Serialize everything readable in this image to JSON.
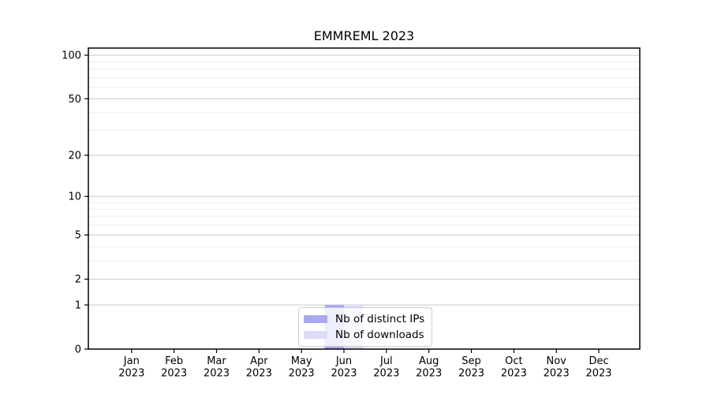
{
  "chart_data": {
    "type": "bar",
    "title": "EMMREML 2023",
    "categories": [
      "Jan",
      "Feb",
      "Mar",
      "Apr",
      "May",
      "Jun",
      "Jul",
      "Aug",
      "Sep",
      "Oct",
      "Nov",
      "Dec"
    ],
    "year_label": "2023",
    "series": [
      {
        "name": "Nb of distinct IPs",
        "color": "#a9a9ef",
        "values": [
          0,
          0,
          0,
          0,
          0,
          1,
          0,
          0,
          0,
          0,
          0,
          0
        ]
      },
      {
        "name": "Nb of downloads",
        "color": "#dcdcf7",
        "values": [
          0,
          0,
          0,
          0,
          0,
          1,
          0,
          0,
          0,
          0,
          0,
          0
        ]
      }
    ],
    "yscale": "log1p",
    "yticks": [
      0,
      1,
      2,
      5,
      10,
      20,
      50,
      100
    ],
    "yminorticks": [
      3,
      4,
      6,
      7,
      8,
      9,
      30,
      40,
      60,
      70,
      80,
      90
    ],
    "ylim": [
      0,
      112
    ],
    "grid": true,
    "legend_position": "lower center",
    "colors": {
      "spine": "#000000",
      "major_grid": "#cacaca",
      "minor_grid": "#ececec",
      "background": "#ffffff"
    }
  }
}
